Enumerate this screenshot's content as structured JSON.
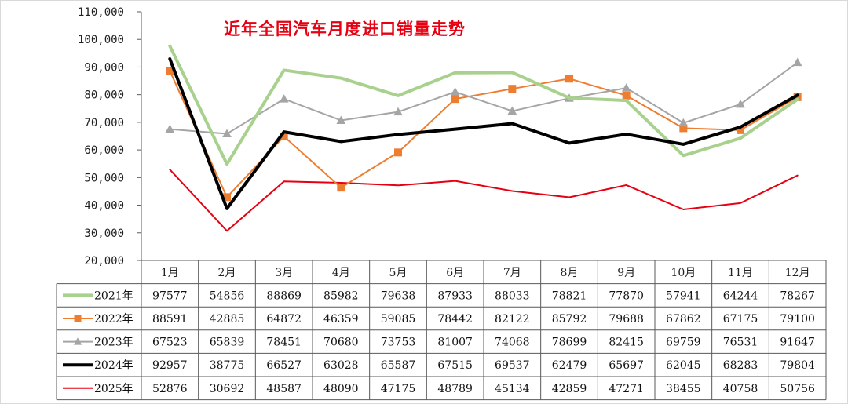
{
  "chart_data": {
    "type": "line",
    "title": "近年全国汽车月度进口销量走势",
    "categories": [
      "1月",
      "2月",
      "3月",
      "4月",
      "5月",
      "6月",
      "7月",
      "8月",
      "9月",
      "10月",
      "11月",
      "12月"
    ],
    "ylim": [
      20000,
      110000
    ],
    "yticks": [
      20000,
      30000,
      40000,
      50000,
      60000,
      70000,
      80000,
      90000,
      100000,
      110000
    ],
    "ytick_labels": [
      "20,000",
      "30,000",
      "40,000",
      "50,000",
      "60,000",
      "70,000",
      "80,000",
      "90,000",
      "100,000",
      "110,000"
    ],
    "grid": false,
    "legend": "data-table-below",
    "series": [
      {
        "name": "2021年",
        "color": "#a9d18e",
        "marker": "none",
        "values": [
          97577,
          54856,
          88869,
          85982,
          79638,
          87933,
          88033,
          78821,
          77870,
          57941,
          64244,
          78267
        ]
      },
      {
        "name": "2022年",
        "color": "#ed7d31",
        "marker": "square",
        "values": [
          88591,
          42885,
          64872,
          46359,
          59085,
          78442,
          82122,
          85792,
          79688,
          67862,
          67175,
          79100
        ]
      },
      {
        "name": "2023年",
        "color": "#a5a5a5",
        "marker": "triangle",
        "values": [
          67523,
          65839,
          78451,
          70680,
          73753,
          81007,
          74068,
          78699,
          82415,
          69759,
          76531,
          91647
        ]
      },
      {
        "name": "2024年",
        "color": "#000000",
        "marker": "none",
        "values": [
          92957,
          38775,
          66527,
          63028,
          65587,
          67515,
          69537,
          62479,
          65697,
          62045,
          68283,
          79804
        ]
      },
      {
        "name": "2025年",
        "color": "#e60012",
        "marker": "none",
        "values": [
          52876,
          30692,
          48587,
          48090,
          47175,
          48789,
          45134,
          42859,
          47271,
          38455,
          40758,
          50756
        ]
      }
    ]
  }
}
